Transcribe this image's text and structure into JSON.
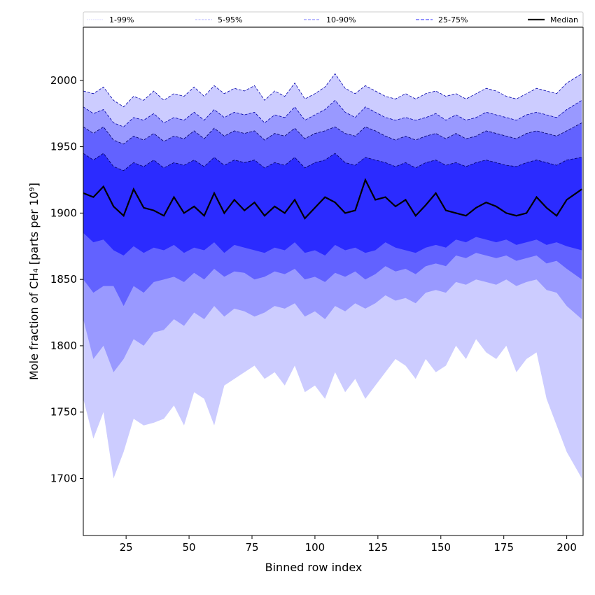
{
  "chart_data": {
    "type": "area",
    "title": "",
    "xlabel": "Binned row index",
    "ylabel": "Mole fraction of CH₄ [parts per 10⁹]",
    "xlim": [
      8,
      206.5
    ],
    "ylim": [
      1657,
      2040
    ],
    "xticks": [
      25,
      50,
      75,
      100,
      125,
      150,
      175,
      200
    ],
    "yticks": [
      1700,
      1750,
      1800,
      1850,
      1900,
      1950,
      2000
    ],
    "grid": false,
    "legend_position": "top, above plot",
    "legend": [
      {
        "label": "1-99%",
        "color": "#ccccff"
      },
      {
        "label": "5-95%",
        "color": "#9999ff"
      },
      {
        "label": "10-90%",
        "color": "#7777ff"
      },
      {
        "label": "25-75%",
        "color": "#5555ff"
      },
      {
        "label": "Median",
        "color": "#000000"
      }
    ],
    "x": [
      8,
      12,
      16,
      20,
      24,
      28,
      32,
      36,
      40,
      44,
      48,
      52,
      56,
      60,
      64,
      68,
      72,
      76,
      80,
      84,
      88,
      92,
      96,
      100,
      104,
      108,
      112,
      116,
      120,
      124,
      128,
      132,
      136,
      140,
      144,
      148,
      152,
      156,
      160,
      164,
      168,
      172,
      176,
      180,
      184,
      188,
      192,
      196,
      200,
      206
    ],
    "series": [
      {
        "name": "p1",
        "values": [
          1760,
          1730,
          1750,
          1700,
          1720,
          1745,
          1740,
          1742,
          1745,
          1755,
          1740,
          1765,
          1760,
          1740,
          1770,
          1775,
          1780,
          1785,
          1775,
          1780,
          1770,
          1785,
          1765,
          1770,
          1760,
          1780,
          1765,
          1775,
          1760,
          1770,
          1780,
          1790,
          1785,
          1775,
          1790,
          1780,
          1785,
          1800,
          1790,
          1805,
          1795,
          1790,
          1800,
          1780,
          1790,
          1795,
          1760,
          1740,
          1720,
          1700
        ]
      },
      {
        "name": "p5",
        "values": [
          1820,
          1790,
          1800,
          1780,
          1790,
          1805,
          1800,
          1810,
          1812,
          1820,
          1815,
          1825,
          1820,
          1830,
          1822,
          1828,
          1826,
          1822,
          1825,
          1830,
          1828,
          1832,
          1822,
          1826,
          1820,
          1830,
          1826,
          1832,
          1828,
          1832,
          1838,
          1834,
          1836,
          1832,
          1840,
          1842,
          1840,
          1848,
          1846,
          1850,
          1848,
          1846,
          1850,
          1845,
          1848,
          1850,
          1842,
          1840,
          1830,
          1820
        ]
      },
      {
        "name": "p10",
        "values": [
          1850,
          1840,
          1845,
          1845,
          1830,
          1845,
          1840,
          1848,
          1850,
          1852,
          1848,
          1855,
          1850,
          1858,
          1852,
          1856,
          1855,
          1850,
          1852,
          1856,
          1854,
          1858,
          1850,
          1852,
          1848,
          1855,
          1852,
          1856,
          1850,
          1854,
          1860,
          1856,
          1858,
          1854,
          1860,
          1862,
          1860,
          1868,
          1866,
          1870,
          1868,
          1866,
          1868,
          1864,
          1866,
          1868,
          1862,
          1864,
          1858,
          1850
        ]
      },
      {
        "name": "p25",
        "values": [
          1885,
          1878,
          1880,
          1872,
          1868,
          1875,
          1870,
          1874,
          1872,
          1876,
          1870,
          1874,
          1872,
          1878,
          1870,
          1876,
          1874,
          1872,
          1870,
          1874,
          1872,
          1878,
          1870,
          1872,
          1868,
          1876,
          1872,
          1874,
          1870,
          1872,
          1878,
          1874,
          1872,
          1870,
          1874,
          1876,
          1874,
          1880,
          1878,
          1882,
          1880,
          1878,
          1880,
          1876,
          1878,
          1880,
          1876,
          1878,
          1875,
          1872
        ]
      },
      {
        "name": "median",
        "values": [
          1915,
          1912,
          1920,
          1905,
          1898,
          1918,
          1904,
          1902,
          1898,
          1912,
          1900,
          1905,
          1898,
          1915,
          1900,
          1910,
          1902,
          1908,
          1898,
          1905,
          1900,
          1910,
          1896,
          1904,
          1912,
          1908,
          1900,
          1902,
          1925,
          1910,
          1912,
          1905,
          1910,
          1898,
          1906,
          1915,
          1902,
          1900,
          1898,
          1904,
          1908,
          1905,
          1900,
          1898,
          1900,
          1912,
          1904,
          1898,
          1910,
          1918
        ]
      },
      {
        "name": "p75",
        "values": [
          1945,
          1940,
          1945,
          1935,
          1932,
          1938,
          1935,
          1940,
          1934,
          1938,
          1936,
          1940,
          1935,
          1942,
          1936,
          1940,
          1938,
          1940,
          1934,
          1938,
          1936,
          1942,
          1934,
          1938,
          1940,
          1945,
          1938,
          1936,
          1942,
          1940,
          1938,
          1935,
          1938,
          1934,
          1938,
          1940,
          1936,
          1938,
          1935,
          1938,
          1940,
          1938,
          1936,
          1935,
          1938,
          1940,
          1938,
          1936,
          1940,
          1942
        ]
      },
      {
        "name": "p90",
        "values": [
          1965,
          1960,
          1965,
          1955,
          1952,
          1958,
          1955,
          1960,
          1954,
          1958,
          1956,
          1962,
          1956,
          1964,
          1958,
          1962,
          1960,
          1962,
          1955,
          1960,
          1958,
          1964,
          1956,
          1960,
          1962,
          1965,
          1960,
          1958,
          1965,
          1962,
          1958,
          1955,
          1958,
          1955,
          1958,
          1960,
          1956,
          1960,
          1956,
          1958,
          1962,
          1960,
          1958,
          1956,
          1960,
          1962,
          1960,
          1958,
          1962,
          1968
        ]
      },
      {
        "name": "p95",
        "values": [
          1980,
          1975,
          1978,
          1968,
          1965,
          1972,
          1970,
          1975,
          1968,
          1972,
          1970,
          1976,
          1970,
          1978,
          1972,
          1976,
          1974,
          1976,
          1968,
          1974,
          1972,
          1980,
          1970,
          1974,
          1978,
          1985,
          1976,
          1972,
          1980,
          1976,
          1972,
          1970,
          1972,
          1970,
          1972,
          1975,
          1970,
          1974,
          1970,
          1972,
          1976,
          1974,
          1972,
          1970,
          1974,
          1976,
          1974,
          1972,
          1978,
          1985
        ]
      },
      {
        "name": "p99",
        "values": [
          1992,
          1990,
          1995,
          1985,
          1980,
          1988,
          1985,
          1992,
          1985,
          1990,
          1988,
          1995,
          1988,
          1996,
          1990,
          1994,
          1992,
          1996,
          1985,
          1992,
          1988,
          1998,
          1986,
          1990,
          1995,
          2005,
          1994,
          1990,
          1996,
          1992,
          1988,
          1986,
          1990,
          1986,
          1990,
          1992,
          1988,
          1990,
          1986,
          1990,
          1994,
          1992,
          1988,
          1986,
          1990,
          1994,
          1992,
          1990,
          1998,
          2005
        ]
      }
    ],
    "bands": [
      {
        "label": "1-99%",
        "lower": "p1",
        "upper": "p99",
        "fill": "#ccccff"
      },
      {
        "label": "5-95%",
        "lower": "p5",
        "upper": "p95",
        "fill": "#9999ff"
      },
      {
        "label": "10-90%",
        "lower": "p10",
        "upper": "p90",
        "fill": "#6262ff"
      },
      {
        "label": "25-75%",
        "lower": "p25",
        "upper": "p75",
        "fill": "#2b2bff"
      }
    ]
  }
}
